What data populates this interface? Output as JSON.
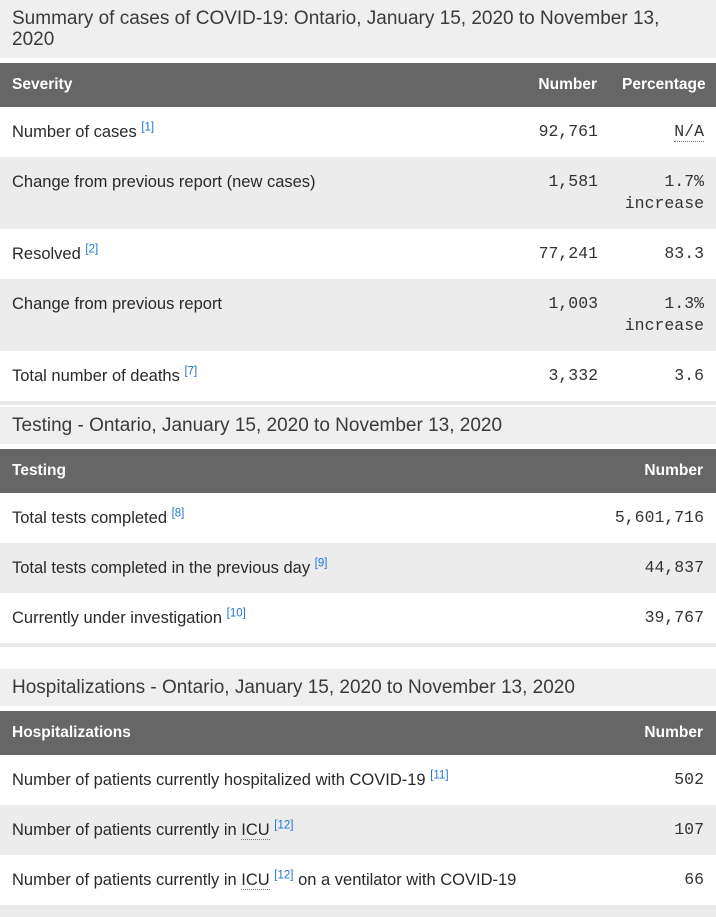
{
  "colors": {
    "caption_background": "#efefef",
    "header_background": "#666666",
    "header_text": "#ffffff",
    "stripe_background": "#ececec",
    "footnote_link_blue": "#2076d2",
    "body_text": "#29292b"
  },
  "tables": [
    {
      "id": "summary",
      "caption": "Summary of cases of COVID-19: Ontario, January 15, 2020 to November 13, 2020",
      "columns": [
        {
          "label": "Severity",
          "align": "left"
        },
        {
          "label": "Number",
          "align": "right"
        },
        {
          "label": "Percentage",
          "align": "right"
        }
      ],
      "rows": [
        {
          "label_parts": [
            {
              "t": "text",
              "v": "Number of cases "
            },
            {
              "t": "fn",
              "v": "[1]"
            }
          ],
          "number": "92,761",
          "percentage_parts": [
            {
              "t": "abbr",
              "v": "N/A"
            }
          ]
        },
        {
          "label_parts": [
            {
              "t": "text",
              "v": "Change from previous report (new cases)"
            }
          ],
          "number": "1,581",
          "percentage_parts": [
            {
              "t": "text",
              "v": "1.7%"
            },
            {
              "t": "br"
            },
            {
              "t": "text",
              "v": "increase"
            }
          ]
        },
        {
          "label_parts": [
            {
              "t": "text",
              "v": "Resolved "
            },
            {
              "t": "fn",
              "v": "[2]"
            }
          ],
          "number": "77,241",
          "percentage_parts": [
            {
              "t": "text",
              "v": "83.3"
            }
          ]
        },
        {
          "label_parts": [
            {
              "t": "text",
              "v": "Change from previous report"
            }
          ],
          "number": "1,003",
          "percentage_parts": [
            {
              "t": "text",
              "v": "1.3%"
            },
            {
              "t": "br"
            },
            {
              "t": "text",
              "v": "increase"
            }
          ]
        },
        {
          "label_parts": [
            {
              "t": "text",
              "v": "Total number of deaths "
            },
            {
              "t": "fn",
              "v": "[7]"
            }
          ],
          "number": "3,332",
          "percentage_parts": [
            {
              "t": "text",
              "v": "3.6"
            }
          ]
        }
      ]
    },
    {
      "id": "testing",
      "caption": "Testing - Ontario, January 15, 2020 to November 13, 2020",
      "columns": [
        {
          "label": "Testing",
          "align": "left"
        },
        {
          "label": "Number",
          "align": "right"
        }
      ],
      "rows": [
        {
          "label_parts": [
            {
              "t": "text",
              "v": "Total tests completed "
            },
            {
              "t": "fn",
              "v": "[8]"
            }
          ],
          "number": "5,601,716"
        },
        {
          "label_parts": [
            {
              "t": "text",
              "v": "Total tests completed in the previous day "
            },
            {
              "t": "fn",
              "v": "[9]"
            }
          ],
          "number": "44,837"
        },
        {
          "label_parts": [
            {
              "t": "text",
              "v": "Currently under investigation "
            },
            {
              "t": "fn",
              "v": "[10]"
            }
          ],
          "number": "39,767"
        }
      ]
    },
    {
      "id": "hospitalizations",
      "caption": "Hospitalizations - Ontario, January 15, 2020 to November 13, 2020",
      "columns": [
        {
          "label": "Hospitalizations",
          "align": "left"
        },
        {
          "label": "Number",
          "align": "right"
        }
      ],
      "rows": [
        {
          "label_parts": [
            {
              "t": "text",
              "v": "Number of patients currently hospitalized with COVID-19 "
            },
            {
              "t": "fn",
              "v": "[11]"
            }
          ],
          "number": "502"
        },
        {
          "label_parts": [
            {
              "t": "text",
              "v": "Number of patients currently in "
            },
            {
              "t": "abbr",
              "v": "ICU"
            },
            {
              "t": "text",
              "v": " "
            },
            {
              "t": "fn",
              "v": "[12]"
            }
          ],
          "number": "107"
        },
        {
          "label_parts": [
            {
              "t": "text",
              "v": "Number of patients currently in "
            },
            {
              "t": "abbr",
              "v": "ICU"
            },
            {
              "t": "text",
              "v": " "
            },
            {
              "t": "fn",
              "v": "[12]"
            },
            {
              "t": "text",
              "v": " on a ventilator with COVID-19"
            }
          ],
          "number": "66"
        }
      ]
    }
  ]
}
